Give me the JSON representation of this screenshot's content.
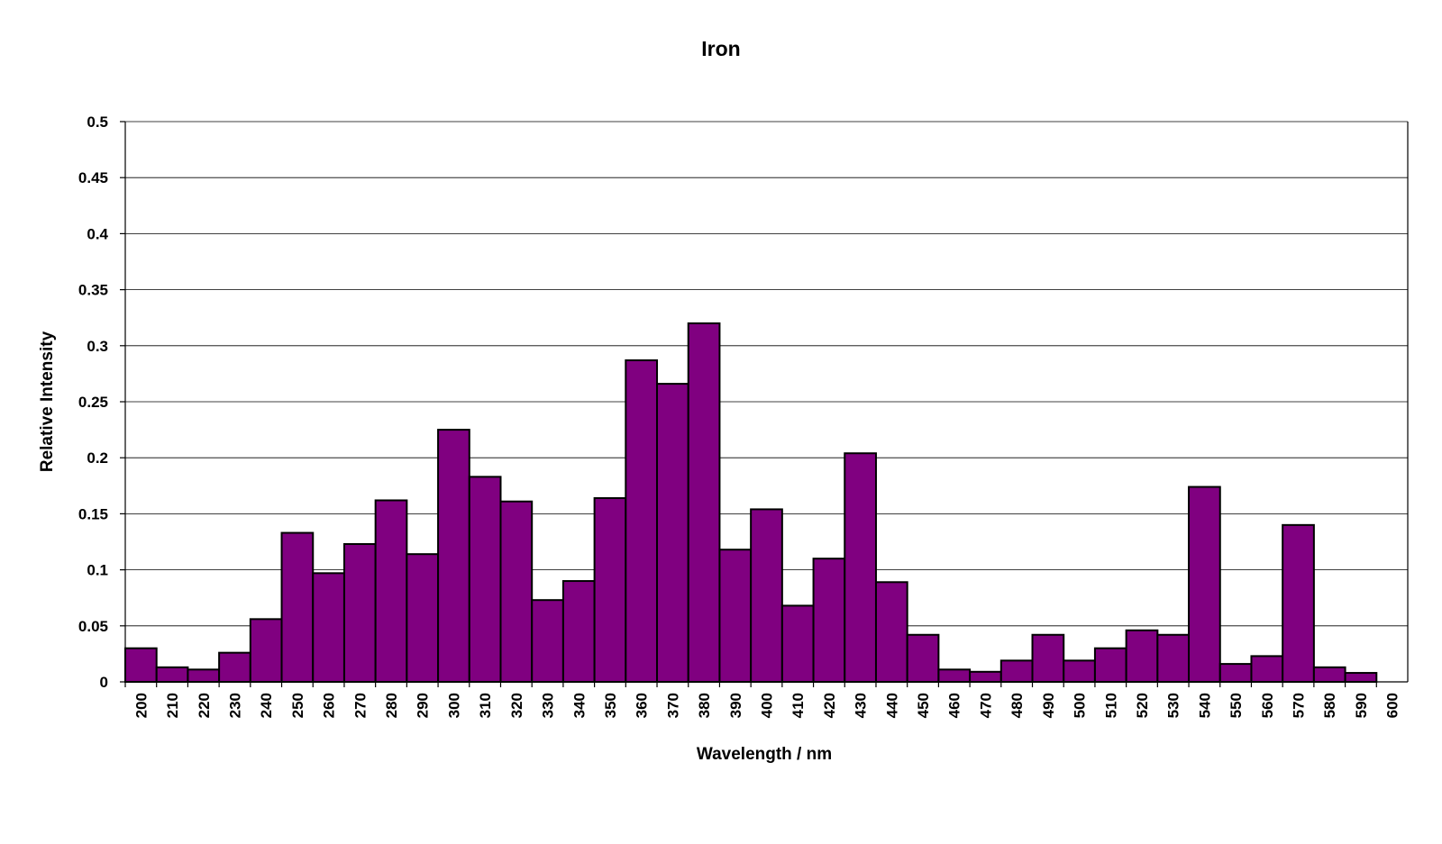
{
  "chart_data": {
    "type": "bar",
    "title": "Iron",
    "xlabel": "Wavelength / nm",
    "ylabel": "Relative Intensity",
    "ylim": [
      0,
      0.5
    ],
    "yticks": [
      "0",
      "0.05",
      "0.1",
      "0.15",
      "0.2",
      "0.25",
      "0.3",
      "0.35",
      "0.4",
      "0.45",
      "0.5"
    ],
    "xticks": [
      "200",
      "210",
      "220",
      "230",
      "240",
      "250",
      "260",
      "270",
      "280",
      "290",
      "300",
      "310",
      "320",
      "330",
      "340",
      "350",
      "360",
      "370",
      "380",
      "390",
      "400",
      "410",
      "420",
      "430",
      "440",
      "450",
      "460",
      "470",
      "480",
      "490",
      "500",
      "510",
      "520",
      "530",
      "540",
      "550",
      "560",
      "570",
      "580",
      "590",
      "600"
    ],
    "categories": [
      "200",
      "210",
      "220",
      "230",
      "240",
      "250",
      "260",
      "270",
      "280",
      "290",
      "300",
      "310",
      "320",
      "330",
      "340",
      "350",
      "360",
      "370",
      "380",
      "390",
      "400",
      "410",
      "420",
      "430",
      "440",
      "450",
      "460",
      "470",
      "480",
      "490",
      "500",
      "510",
      "520",
      "530",
      "540",
      "550",
      "560",
      "570",
      "580",
      "590"
    ],
    "values": [
      0.03,
      0.013,
      0.011,
      0.026,
      0.056,
      0.133,
      0.097,
      0.123,
      0.162,
      0.114,
      0.225,
      0.183,
      0.161,
      0.073,
      0.09,
      0.164,
      0.287,
      0.266,
      0.32,
      0.118,
      0.154,
      0.068,
      0.11,
      0.204,
      0.089,
      0.042,
      0.011,
      0.009,
      0.019,
      0.042,
      0.019,
      0.03,
      0.046,
      0.042,
      0.174,
      0.016,
      0.023,
      0.14,
      0.013,
      0.008
    ],
    "grid": true,
    "legend": "none",
    "colors": {
      "bar": "#800080",
      "outline": "#000000",
      "grid": "#000000",
      "background": "#ffffff"
    }
  }
}
